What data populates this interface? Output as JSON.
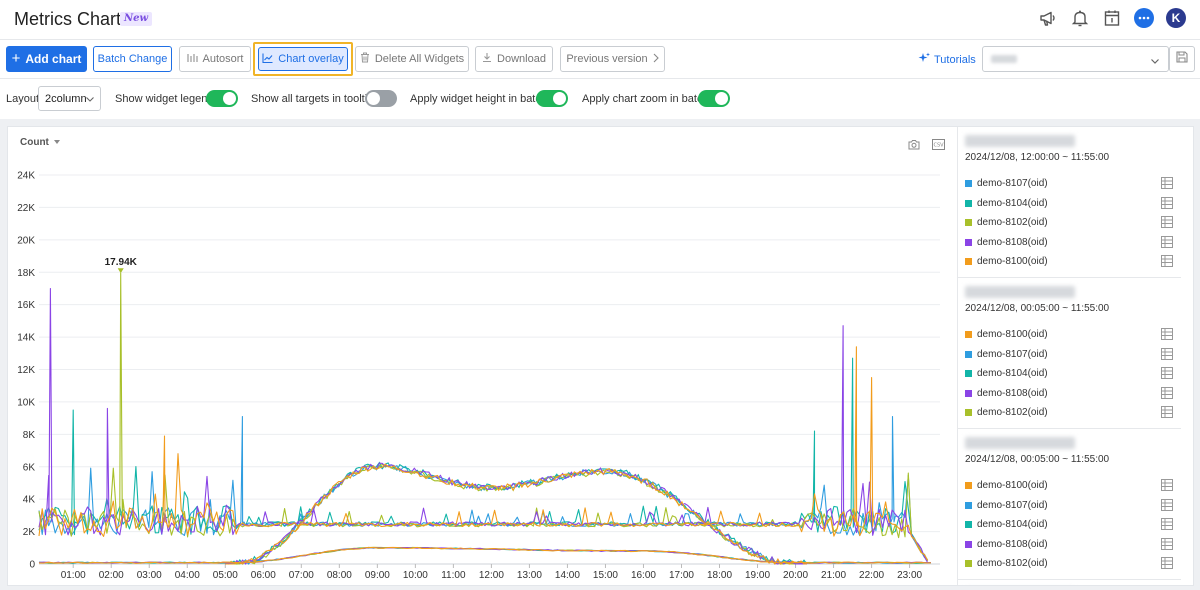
{
  "app": {
    "title": "Metrics Chart",
    "badge": "New"
  },
  "header_icons": [
    "megaphone-icon",
    "bell-icon",
    "calendar-icon",
    "chat-icon",
    "avatar"
  ],
  "user": {
    "initial": "K"
  },
  "toolbar": {
    "add_chart": "Add chart",
    "batch_change": "Batch Change",
    "autosort": "Autosort",
    "chart_overlay": "Chart overlay",
    "delete_all": "Delete All Widgets",
    "download": "Download",
    "previous_version": "Previous version",
    "tutorials": "Tutorials"
  },
  "options": {
    "layout_label": "Layout",
    "layout_value": "2column",
    "show_widget_legend": {
      "label": "Show widget legend",
      "on": true
    },
    "show_all_targets": {
      "label": "Show all targets in tooltip",
      "on": false
    },
    "apply_height": {
      "label": "Apply widget height in batch",
      "on": true
    },
    "apply_zoom": {
      "label": "Apply chart zoom in batch",
      "on": true
    }
  },
  "widget": {
    "metric_selector": "Count"
  },
  "chart_data": {
    "type": "line",
    "y_ticks": [
      "0",
      "2K",
      "4K",
      "6K",
      "8K",
      "10K",
      "12K",
      "14K",
      "16K",
      "18K",
      "20K",
      "22K",
      "24K"
    ],
    "x_ticks": [
      "01:00",
      "02:00",
      "03:00",
      "04:00",
      "05:00",
      "06:00",
      "07:00",
      "08:00",
      "09:00",
      "10:00",
      "11:00",
      "12:00",
      "13:00",
      "14:00",
      "15:00",
      "16:00",
      "17:00",
      "18:00",
      "19:00",
      "20:00",
      "21:00",
      "22:00",
      "23:00"
    ],
    "ylim": [
      0,
      24000
    ],
    "peak_label": "17.94K",
    "peak": {
      "x": 2.25,
      "y": 17940
    },
    "series": [
      {
        "name": "demo-8107(oid)",
        "color": "#2f9de0"
      },
      {
        "name": "demo-8104(oid)",
        "color": "#12b5a8"
      },
      {
        "name": "demo-8102(oid)",
        "color": "#a8c02a"
      },
      {
        "name": "demo-8108(oid)",
        "color": "#8a44e6"
      },
      {
        "name": "demo-8100(oid)",
        "color": "#f29c1c"
      }
    ],
    "spikes": [
      {
        "series": 3,
        "x": 0.4,
        "y": 17000
      },
      {
        "series": 1,
        "x": 1.0,
        "y": 9500
      },
      {
        "series": 3,
        "x": 1.9,
        "y": 9600
      },
      {
        "series": 2,
        "x": 2.25,
        "y": 17940
      },
      {
        "series": 4,
        "x": 3.4,
        "y": 7900
      },
      {
        "series": 0,
        "x": 5.45,
        "y": 9100
      },
      {
        "series": 3,
        "x": 21.25,
        "y": 14700
      },
      {
        "series": 4,
        "x": 21.6,
        "y": 13400
      },
      {
        "series": 1,
        "x": 21.5,
        "y": 12700
      },
      {
        "series": 4,
        "x": 22.0,
        "y": 11500
      },
      {
        "series": 0,
        "x": 22.55,
        "y": 9100
      },
      {
        "series": 1,
        "x": 20.5,
        "y": 8200
      }
    ]
  },
  "legend_groups": [
    {
      "range": "2024/12/08, 12:00:00 ~ 11:55:00",
      "items": [
        {
          "name": "demo-8107(oid)",
          "color": "#2f9de0"
        },
        {
          "name": "demo-8104(oid)",
          "color": "#12b5a8"
        },
        {
          "name": "demo-8102(oid)",
          "color": "#a8c02a"
        },
        {
          "name": "demo-8108(oid)",
          "color": "#8a44e6"
        },
        {
          "name": "demo-8100(oid)",
          "color": "#f29c1c"
        }
      ]
    },
    {
      "range": "2024/12/08, 00:05:00 ~ 11:55:00",
      "items": [
        {
          "name": "demo-8100(oid)",
          "color": "#f29c1c"
        },
        {
          "name": "demo-8107(oid)",
          "color": "#2f9de0"
        },
        {
          "name": "demo-8104(oid)",
          "color": "#12b5a8"
        },
        {
          "name": "demo-8108(oid)",
          "color": "#8a44e6"
        },
        {
          "name": "demo-8102(oid)",
          "color": "#a8c02a"
        }
      ]
    },
    {
      "range": "2024/12/08, 00:05:00 ~ 11:55:00",
      "items": [
        {
          "name": "demo-8100(oid)",
          "color": "#f29c1c"
        },
        {
          "name": "demo-8107(oid)",
          "color": "#2f9de0"
        },
        {
          "name": "demo-8104(oid)",
          "color": "#12b5a8"
        },
        {
          "name": "demo-8108(oid)",
          "color": "#8a44e6"
        },
        {
          "name": "demo-8102(oid)",
          "color": "#a8c02a"
        }
      ]
    }
  ]
}
